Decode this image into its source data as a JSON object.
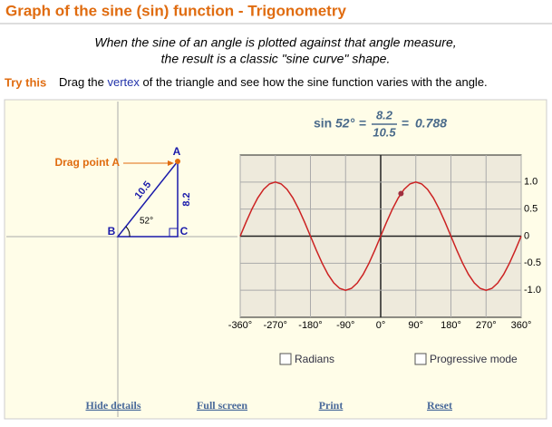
{
  "header": {
    "title": "Graph of the sine (sin) function - Trigonometry"
  },
  "intro": [
    "When the sine of an angle is plotted against that angle measure,",
    "the result is a classic \"sine curve\" shape."
  ],
  "instruction": {
    "label": "Try this",
    "before": "Drag the",
    "link": "vertex",
    "after": "of the triangle and see how the sine function varies with the angle."
  },
  "triangle": {
    "drag_label": "Drag point A",
    "vertex_a": "A",
    "vertex_b": "B",
    "vertex_c": "C",
    "hypotenuse": "10.5",
    "opposite": "8.2",
    "angle": "52°"
  },
  "equation": {
    "func": "sin",
    "angle": "52°",
    "equals": "=",
    "numerator": "8.2",
    "denominator": "10.5"
  },
  "chart_data": {
    "type": "line",
    "color": "#cc2222",
    "x": [
      -360,
      -345,
      -330,
      -315,
      -300,
      -285,
      -270,
      -255,
      -240,
      -225,
      -210,
      -195,
      -180,
      -165,
      -150,
      -135,
      -120,
      -105,
      -90,
      -75,
      -60,
      -45,
      -30,
      -15,
      0,
      15,
      30,
      45,
      60,
      75,
      90,
      105,
      120,
      135,
      150,
      165,
      180,
      195,
      210,
      225,
      240,
      255,
      270,
      285,
      300,
      315,
      330,
      345,
      360
    ],
    "values": [
      0,
      0.259,
      0.5,
      0.707,
      0.866,
      0.966,
      1,
      0.966,
      0.866,
      0.707,
      0.5,
      0.259,
      0,
      -0.259,
      -0.5,
      -0.707,
      -0.866,
      -0.966,
      -1,
      -0.966,
      -0.866,
      -0.707,
      -0.5,
      -0.259,
      0,
      0.259,
      0.5,
      0.707,
      0.866,
      0.966,
      1,
      0.966,
      0.866,
      0.707,
      0.5,
      0.259,
      0,
      -0.259,
      -0.5,
      -0.707,
      -0.866,
      -0.966,
      -1,
      -0.966,
      -0.866,
      -0.707,
      -0.5,
      -0.259,
      0
    ],
    "point": {
      "x": 52,
      "y": 0.788,
      "color": "#a03040"
    },
    "xlim": [
      -360,
      360
    ],
    "ylim": [
      -1.5,
      1.5
    ],
    "xticks": [
      {
        "value": -360,
        "label": "-360°"
      },
      {
        "value": -270,
        "label": "-270°"
      },
      {
        "value": -180,
        "label": "-180°"
      },
      {
        "value": -90,
        "label": "-90°"
      },
      {
        "value": 0,
        "label": "0°"
      },
      {
        "value": 90,
        "label": "90°"
      },
      {
        "value": 180,
        "label": "180°"
      },
      {
        "value": 270,
        "label": "270°"
      },
      {
        "value": 360,
        "label": "360°"
      }
    ],
    "yticks": [
      {
        "value": 1,
        "label": "1.0"
      },
      0.5,
      0,
      -0.5,
      {
        "value": -1,
        "label": "-1.0"
      }
    ],
    "grid": true
  },
  "controls": [
    "Radians",
    "Progressive mode"
  ],
  "links": [
    "Hide details",
    "Full screen",
    "Print",
    "Reset"
  ]
}
